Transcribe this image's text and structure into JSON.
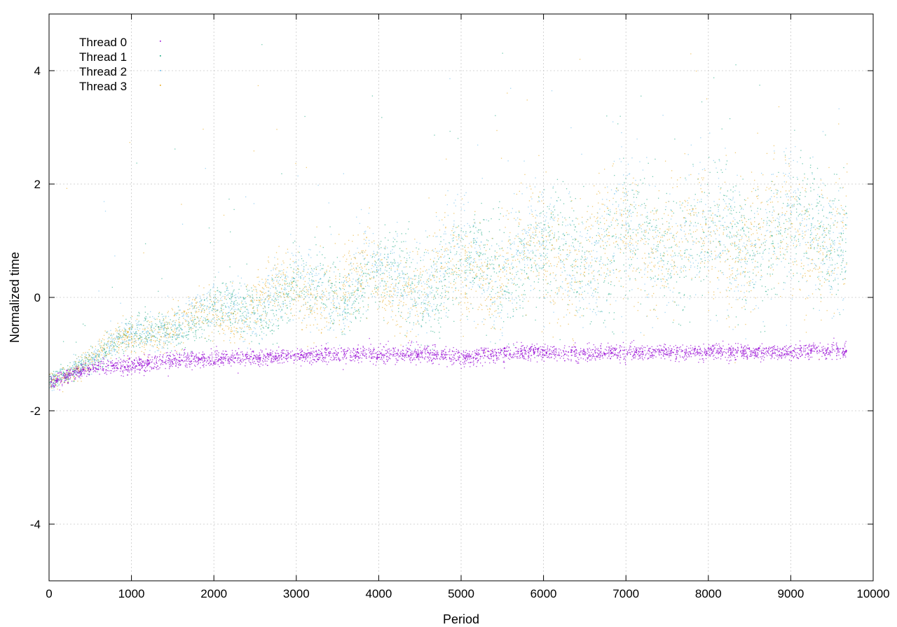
{
  "chart_data": {
    "type": "scatter",
    "title": "",
    "xlabel": "Period",
    "ylabel": "Normalized time",
    "xlim": [
      0,
      10000
    ],
    "ylim": [
      -5,
      5
    ],
    "x_ticks": [
      0,
      1000,
      2000,
      3000,
      4000,
      5000,
      6000,
      7000,
      8000,
      9000,
      10000
    ],
    "x_tick_labels": [
      "0",
      "1000",
      "2000",
      "3000",
      "4000",
      "5000",
      "6000",
      "7000",
      "8000",
      "9000",
      "10000"
    ],
    "y_ticks": [
      -4,
      -2,
      0,
      2,
      4
    ],
    "y_tick_labels": [
      "-4",
      "-2",
      "0",
      "2",
      "4"
    ],
    "grid": true,
    "legend_position": "top-left",
    "series": [
      {
        "name": "Thread 0",
        "color": "#9400d3",
        "x": [
          0,
          250,
          500,
          750,
          1000,
          1250,
          1500,
          1750,
          2000,
          2500,
          3000,
          3500,
          4000,
          4500,
          5000,
          5500,
          6000,
          6500,
          7000,
          7500,
          8000,
          8500,
          9000,
          9500,
          9680
        ],
        "y": [
          -1.5,
          -1.35,
          -1.25,
          -1.2,
          -1.2,
          -1.15,
          -1.1,
          -1.08,
          -1.08,
          -1.05,
          -1.02,
          -1.0,
          -1.0,
          -0.98,
          -1.05,
          -0.98,
          -0.95,
          -1.0,
          -0.95,
          -0.95,
          -0.95,
          -0.97,
          -0.95,
          -0.93,
          -0.95
        ]
      },
      {
        "name": "Thread 1",
        "color": "#009e73",
        "x": [
          0,
          250,
          500,
          750,
          1000,
          1250,
          1500,
          1750,
          2000,
          2500,
          3000,
          3500,
          4000,
          4500,
          5000,
          5500,
          6000,
          6500,
          7000,
          7500,
          8000,
          8500,
          9000,
          9500,
          9680
        ],
        "y": [
          -1.5,
          -1.3,
          -1.05,
          -0.85,
          -0.7,
          -0.6,
          -0.5,
          -0.4,
          -0.3,
          -0.1,
          0.05,
          0.15,
          0.25,
          0.3,
          0.4,
          0.6,
          0.7,
          0.8,
          0.9,
          1.0,
          1.0,
          1.05,
          1.1,
          1.1,
          1.1
        ]
      },
      {
        "name": "Thread 2",
        "color": "#56b4e9",
        "x": [
          0,
          250,
          500,
          750,
          1000,
          1250,
          1500,
          1750,
          2000,
          2500,
          3000,
          3500,
          4000,
          4500,
          5000,
          5500,
          6000,
          6500,
          7000,
          7500,
          8000,
          8500,
          9000,
          9500,
          9680
        ],
        "y": [
          -1.5,
          -1.3,
          -1.05,
          -0.85,
          -0.7,
          -0.6,
          -0.45,
          -0.35,
          -0.25,
          -0.05,
          0.1,
          0.2,
          0.3,
          0.35,
          0.45,
          0.65,
          0.75,
          0.85,
          0.95,
          1.05,
          1.05,
          1.1,
          1.15,
          1.15,
          1.15
        ]
      },
      {
        "name": "Thread 3",
        "color": "#e69f00",
        "x": [
          0,
          250,
          500,
          750,
          1000,
          1250,
          1500,
          1750,
          2000,
          2500,
          3000,
          3500,
          4000,
          4500,
          5000,
          5500,
          6000,
          6500,
          7000,
          7500,
          8000,
          8500,
          9000,
          9500,
          9680
        ],
        "y": [
          -1.5,
          -1.3,
          -1.05,
          -0.85,
          -0.7,
          -0.6,
          -0.5,
          -0.4,
          -0.3,
          -0.1,
          0.05,
          0.15,
          0.25,
          0.3,
          0.4,
          0.6,
          0.7,
          0.8,
          0.9,
          1.0,
          1.0,
          1.05,
          1.1,
          1.1,
          1.1
        ]
      }
    ]
  }
}
